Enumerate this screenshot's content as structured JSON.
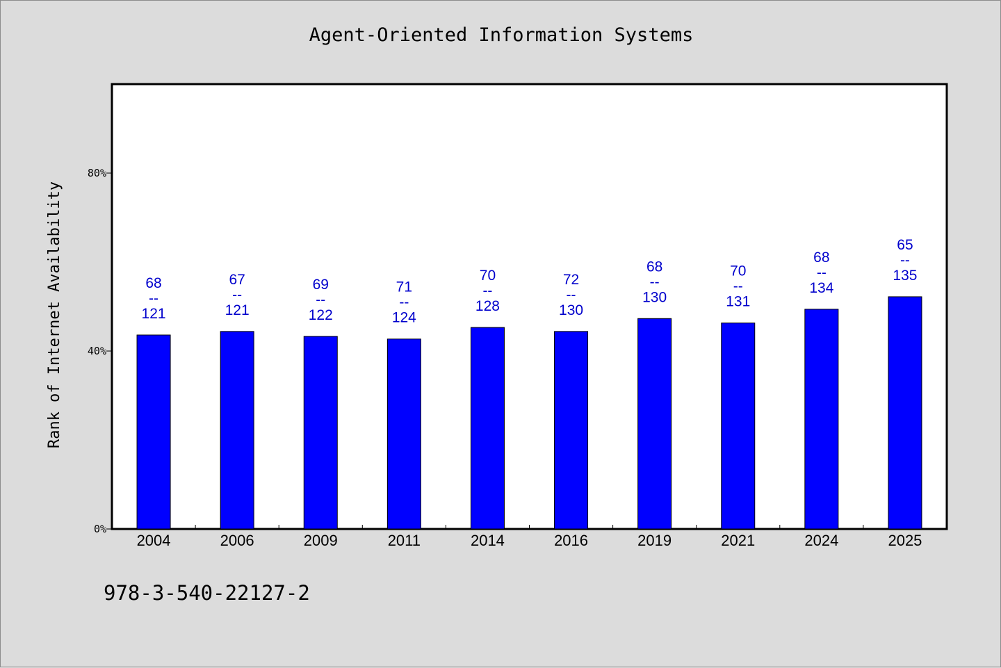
{
  "chart_data": {
    "type": "bar",
    "title": "Agent-Oriented Information Systems",
    "xlabel": "",
    "ylabel": "Rank of Internet Availability",
    "categories": [
      "2004",
      "2006",
      "2009",
      "2011",
      "2014",
      "2016",
      "2019",
      "2021",
      "2024",
      "2025"
    ],
    "values": [
      43.6,
      44.4,
      43.3,
      42.7,
      45.3,
      44.4,
      47.3,
      46.3,
      49.4,
      52.2
    ],
    "ranks": [
      "68",
      "67",
      "69",
      "71",
      "70",
      "72",
      "68",
      "70",
      "68",
      "65"
    ],
    "totals": [
      "121",
      "121",
      "122",
      "124",
      "128",
      "130",
      "130",
      "131",
      "134",
      "135"
    ],
    "label_separator": "--",
    "ylim": [
      0,
      100
    ],
    "yticks": [
      0,
      40,
      80
    ],
    "ytick_labels": [
      "0%",
      "40%",
      "80%"
    ],
    "grid": false,
    "legend": "none",
    "colors": {
      "bar": "#0000ff",
      "bar_label": "#0000cc",
      "background": "#dcdcdc",
      "plot": "#ffffff"
    }
  },
  "footer": {
    "isbn": "978-3-540-22127-2"
  }
}
